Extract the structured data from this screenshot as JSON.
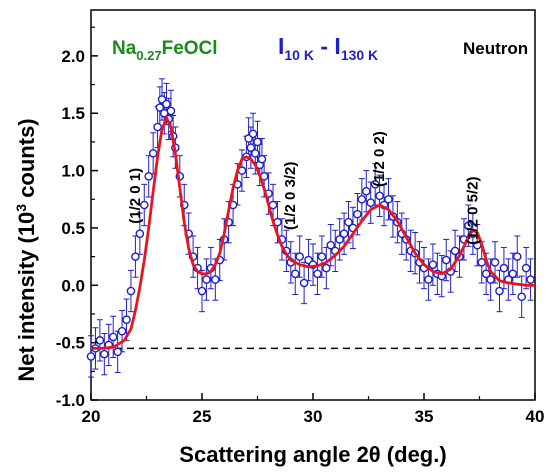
{
  "chart_data": {
    "type": "scatter",
    "xlabel": "Scattering angle 2θ (deg.)",
    "ylabel_main": "Net intensity (10",
    "ylabel_sup": "3",
    "ylabel_tail": " counts)",
    "xlim": [
      20,
      40
    ],
    "ylim": [
      -1.0,
      2.4
    ],
    "x_ticks": [
      20,
      25,
      30,
      35,
      40
    ],
    "x_tick_labels": [
      "20",
      "25",
      "30",
      "35",
      "40"
    ],
    "y_ticks": [
      -1.0,
      -0.5,
      0.0,
      0.5,
      1.0,
      1.5,
      2.0
    ],
    "y_tick_labels": [
      "-1.0",
      "-0.5",
      "0.0",
      "0.5",
      "1.0",
      "1.5",
      "2.0"
    ],
    "grid": false,
    "baseline": {
      "y": -0.55,
      "style": "dashed",
      "color": "#000000"
    },
    "compound": {
      "main": "Na",
      "sub": "0.27",
      "tail": "FeOCl",
      "color": "#1a8a1a"
    },
    "difference": {
      "I1": "I",
      "sub1": "10 K",
      "mid": " - ",
      "I2": "I",
      "sub2": "130 K",
      "color": "#1f1fc8"
    },
    "probe": {
      "text": "Neutron",
      "color": "#000000"
    },
    "peak_labels": [
      {
        "text": "(1/2 0 1)",
        "x": 22.2,
        "y": 0.78
      },
      {
        "text": "(1/2 0 3/2)",
        "x": 29.2,
        "y": 0.78
      },
      {
        "text": "(1/2 0 2)",
        "x": 33.2,
        "y": 1.1
      },
      {
        "text": "(1/2 0 5/2)",
        "x": 37.4,
        "y": 0.65
      }
    ],
    "series": [
      {
        "type": "scatter-errorbar",
        "marker_color": "#1f1fc8",
        "x": [
          20.0,
          20.2,
          20.4,
          20.6,
          20.8,
          21.0,
          21.2,
          21.4,
          21.6,
          21.8,
          22.0,
          22.2,
          22.4,
          22.6,
          22.8,
          23.0,
          23.1,
          23.2,
          23.3,
          23.4,
          23.5,
          23.6,
          23.7,
          23.8,
          24.0,
          24.2,
          24.4,
          24.6,
          24.8,
          25.0,
          25.2,
          25.4,
          25.6,
          25.8,
          26.0,
          26.2,
          26.4,
          26.6,
          26.8,
          27.0,
          27.1,
          27.2,
          27.3,
          27.4,
          27.5,
          27.6,
          27.7,
          27.8,
          28.0,
          28.2,
          28.4,
          28.6,
          28.8,
          29.0,
          29.2,
          29.4,
          29.6,
          29.8,
          30.0,
          30.2,
          30.4,
          30.6,
          30.8,
          31.0,
          31.2,
          31.4,
          31.6,
          31.8,
          32.0,
          32.2,
          32.4,
          32.6,
          32.8,
          33.0,
          33.2,
          33.4,
          33.6,
          33.8,
          34.0,
          34.2,
          34.4,
          34.6,
          34.8,
          35.0,
          35.2,
          35.4,
          35.6,
          35.8,
          36.0,
          36.2,
          36.4,
          36.6,
          36.8,
          37.0,
          37.2,
          37.4,
          37.6,
          37.8,
          38.0,
          38.2,
          38.4,
          38.6,
          38.8,
          39.0,
          39.2,
          39.4,
          39.6,
          39.8
        ],
        "y": [
          -0.62,
          -0.55,
          -0.48,
          -0.6,
          -0.52,
          -0.45,
          -0.58,
          -0.4,
          -0.3,
          -0.05,
          0.25,
          0.45,
          0.7,
          0.95,
          1.15,
          1.38,
          1.55,
          1.62,
          1.5,
          1.58,
          1.45,
          1.52,
          1.3,
          1.2,
          0.95,
          0.7,
          0.45,
          0.25,
          0.15,
          -0.05,
          0.05,
          0.15,
          0.05,
          0.22,
          0.4,
          0.55,
          0.7,
          0.88,
          1.0,
          1.12,
          1.28,
          1.2,
          1.32,
          1.15,
          1.25,
          1.05,
          1.1,
          0.95,
          0.8,
          0.7,
          0.55,
          0.4,
          0.3,
          0.2,
          0.1,
          0.25,
          0.02,
          0.22,
          0.18,
          0.1,
          0.25,
          0.15,
          0.35,
          0.3,
          0.4,
          0.45,
          0.55,
          0.5,
          0.62,
          0.75,
          0.82,
          0.72,
          0.88,
          0.78,
          0.7,
          0.75,
          0.6,
          0.55,
          0.45,
          0.4,
          0.3,
          0.28,
          0.2,
          0.15,
          0.05,
          0.18,
          0.1,
          0.08,
          0.22,
          0.12,
          0.3,
          0.25,
          0.4,
          0.52,
          0.45,
          0.35,
          0.2,
          0.1,
          0.05,
          0.2,
          -0.05,
          0.15,
          0.05,
          0.1,
          0.25,
          -0.1,
          0.15,
          0.05
        ],
        "err": 0.18
      },
      {
        "type": "line",
        "line_color": "#e8141e",
        "x": [
          20.0,
          20.5,
          21.0,
          21.5,
          21.8,
          22.0,
          22.2,
          22.4,
          22.6,
          22.8,
          23.0,
          23.2,
          23.4,
          23.6,
          23.8,
          24.0,
          24.2,
          24.4,
          24.6,
          24.8,
          25.0,
          25.2,
          25.4,
          25.6,
          25.8,
          26.0,
          26.2,
          26.4,
          26.6,
          26.8,
          27.0,
          27.2,
          27.4,
          27.6,
          27.8,
          28.0,
          28.2,
          28.4,
          28.6,
          28.8,
          29.0,
          29.4,
          29.8,
          30.2,
          30.6,
          31.0,
          31.4,
          31.8,
          32.2,
          32.6,
          33.0,
          33.4,
          33.8,
          34.2,
          34.6,
          35.0,
          35.4,
          35.8,
          36.2,
          36.6,
          37.0,
          37.2,
          37.4,
          37.6,
          37.8,
          38.0,
          38.4,
          38.8,
          39.2,
          39.6,
          40.0
        ],
        "y": [
          -0.55,
          -0.55,
          -0.54,
          -0.48,
          -0.38,
          -0.22,
          -0.02,
          0.22,
          0.5,
          0.82,
          1.12,
          1.36,
          1.46,
          1.38,
          1.15,
          0.85,
          0.55,
          0.32,
          0.18,
          0.12,
          0.1,
          0.1,
          0.12,
          0.18,
          0.28,
          0.45,
          0.65,
          0.85,
          1.0,
          1.1,
          1.12,
          1.1,
          1.05,
          0.96,
          0.84,
          0.7,
          0.56,
          0.44,
          0.34,
          0.27,
          0.22,
          0.18,
          0.16,
          0.17,
          0.2,
          0.26,
          0.34,
          0.45,
          0.56,
          0.66,
          0.7,
          0.66,
          0.56,
          0.42,
          0.28,
          0.18,
          0.12,
          0.1,
          0.14,
          0.26,
          0.42,
          0.48,
          0.46,
          0.36,
          0.22,
          0.12,
          0.04,
          0.02,
          0.01,
          0.0,
          0.0
        ]
      }
    ]
  }
}
